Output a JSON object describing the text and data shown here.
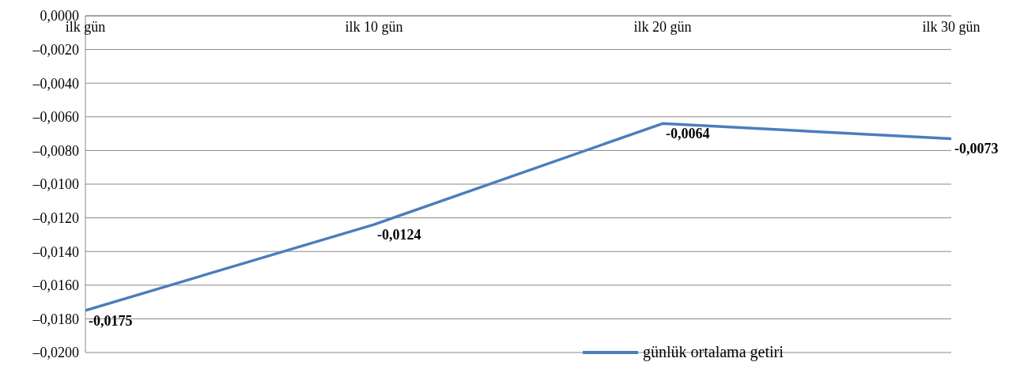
{
  "chart_data": {
    "type": "line",
    "categories": [
      "ilk gün",
      "ilk 10 gün",
      "ilk 20 gün",
      "ilk 30 gün"
    ],
    "series": [
      {
        "name": "günlük ortalama getiri",
        "color": "#4a7ebb",
        "values": [
          -0.0175,
          -0.0124,
          -0.0064,
          -0.0073
        ],
        "value_labels": [
          "-0,0175",
          "-0,0124",
          "-0,0064",
          "-0,0073"
        ]
      }
    ],
    "ylim": [
      -0.02,
      0
    ],
    "yticks": [
      {
        "value": 0,
        "label": "0,0000"
      },
      {
        "value": -0.002,
        "label": "–0,0020"
      },
      {
        "value": -0.004,
        "label": "–0,0040"
      },
      {
        "value": -0.006,
        "label": "–0,0060"
      },
      {
        "value": -0.008,
        "label": "–0,0080"
      },
      {
        "value": -0.01,
        "label": "–0,0100"
      },
      {
        "value": -0.012,
        "label": "–0,0120"
      },
      {
        "value": -0.014,
        "label": "–0,0140"
      },
      {
        "value": -0.016,
        "label": "–0,0160"
      },
      {
        "value": -0.018,
        "label": "–0,0180"
      },
      {
        "value": -0.02,
        "label": "–0,0200"
      }
    ],
    "grid": "y",
    "legend": "bottom right",
    "marker": "none",
    "line_style": "solid"
  }
}
